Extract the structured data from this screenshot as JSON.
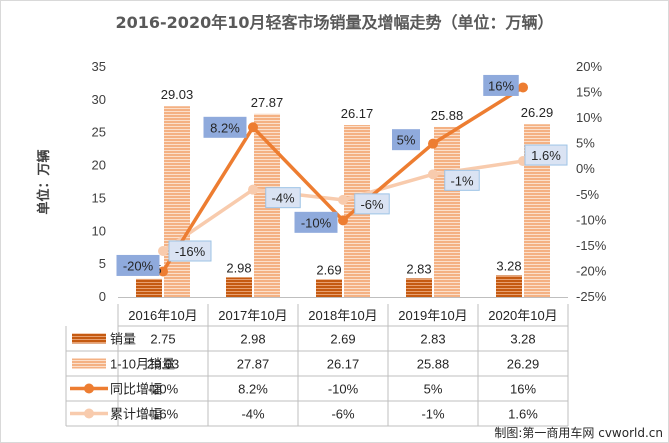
{
  "chart_data": {
    "type": "bar",
    "title": "2016-2020年10月轻客市场销量及增幅走势（单位：万辆）",
    "ylabel": "单位：万辆",
    "categories": [
      "2016年10月",
      "2017年10月",
      "2018年10月",
      "2019年10月",
      "2020年10月"
    ],
    "ylim": [
      0,
      35
    ],
    "y_ticks": [
      "0",
      "5",
      "10",
      "15",
      "20",
      "25",
      "30",
      "35"
    ],
    "y2lim": [
      -0.25,
      0.2
    ],
    "y2_ticks": [
      "-25%",
      "-20%",
      "-15%",
      "-10%",
      "-5%",
      "0%",
      "5%",
      "10%",
      "15%",
      "20%"
    ],
    "legend_position": "bottom (data table)",
    "grid": false,
    "series": [
      {
        "name": "销量",
        "kind": "bar",
        "axis": "left",
        "values": [
          2.75,
          2.98,
          2.69,
          2.83,
          3.28
        ],
        "labels": [
          "2.75",
          "2.98",
          "2.69",
          "2.83",
          "3.28"
        ],
        "color": "#c55a11"
      },
      {
        "name": "1-10月销量",
        "kind": "bar",
        "axis": "left",
        "values": [
          29.03,
          27.87,
          26.17,
          25.88,
          26.29
        ],
        "labels": [
          "29.03",
          "27.87",
          "26.17",
          "25.88",
          "26.29"
        ],
        "color": "#f4b183"
      },
      {
        "name": "同比增幅",
        "kind": "line",
        "axis": "right",
        "values": [
          -0.2,
          0.082,
          -0.1,
          0.05,
          0.16
        ],
        "labels": [
          "-20%",
          "8.2%",
          "-10%",
          "5%",
          "16%"
        ],
        "color": "#ed7d31"
      },
      {
        "name": "累计增幅",
        "kind": "line",
        "axis": "right",
        "values": [
          -0.16,
          -0.04,
          -0.06,
          -0.01,
          0.016
        ],
        "labels": [
          "-16%",
          "-4%",
          "-6%",
          "-1%",
          "1.6%"
        ],
        "color": "#f8cbad"
      }
    ]
  },
  "footer": "制图:第一商用车网 cvworld.cn"
}
